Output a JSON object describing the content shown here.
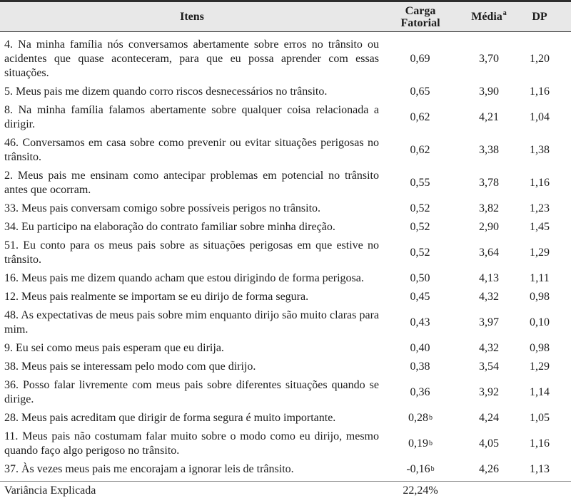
{
  "table": {
    "header": {
      "itens": "Itens",
      "carga_fatorial": "Carga Fatorial",
      "media": "Média",
      "media_sup": "a",
      "dp": "DP"
    },
    "rows": [
      {
        "item": "4. Na minha família nós conversamos abertamente sobre erros no trânsito ou acidentes que quase aconteceram, para que eu possa aprender com essas situações.",
        "carga": "0,69",
        "carga_sup": "",
        "media": "3,70",
        "dp": "1,20"
      },
      {
        "item": "5. Meus pais me dizem quando corro riscos desnecessários no trânsito.",
        "carga": "0,65",
        "carga_sup": "",
        "media": "3,90",
        "dp": "1,16"
      },
      {
        "item": "8. Na minha família falamos abertamente sobre qualquer coisa relacionada a dirigir.",
        "carga": "0,62",
        "carga_sup": "",
        "media": "4,21",
        "dp": "1,04"
      },
      {
        "item": "46. Conversamos em casa sobre como prevenir ou evitar situações perigosas no trânsito.",
        "carga": "0,62",
        "carga_sup": "",
        "media": "3,38",
        "dp": "1,38"
      },
      {
        "item": "2. Meus pais me ensinam como antecipar problemas em potencial no trânsito antes que ocorram.",
        "carga": "0,55",
        "carga_sup": "",
        "media": "3,78",
        "dp": "1,16"
      },
      {
        "item": "33. Meus pais conversam comigo sobre possíveis perigos no trânsito.",
        "carga": "0,52",
        "carga_sup": "",
        "media": "3,82",
        "dp": "1,23"
      },
      {
        "item": "34. Eu participo na elaboração do contrato familiar sobre minha direção.",
        "carga": "0,52",
        "carga_sup": "",
        "media": "2,90",
        "dp": "1,45"
      },
      {
        "item": "51. Eu conto para os meus pais sobre as situações perigosas em que estive no trânsito.",
        "carga": "0,52",
        "carga_sup": "",
        "media": "3,64",
        "dp": "1,29"
      },
      {
        "item": "16. Meus pais me dizem quando acham que estou dirigindo de forma perigosa.",
        "carga": "0,50",
        "carga_sup": "",
        "media": "4,13",
        "dp": "1,11"
      },
      {
        "item": "12. Meus pais realmente se importam se eu dirijo de forma segura.",
        "carga": "0,45",
        "carga_sup": "",
        "media": "4,32",
        "dp": "0,98"
      },
      {
        "item": "48. As expectativas de meus pais sobre mim enquanto dirijo são muito claras para mim.",
        "carga": "0,43",
        "carga_sup": "",
        "media": "3,97",
        "dp": "0,10"
      },
      {
        "item": "9. Eu sei como meus pais esperam que eu dirija.",
        "carga": "0,40",
        "carga_sup": "",
        "media": "4,32",
        "dp": "0,98"
      },
      {
        "item": "38. Meus pais se interessam pelo modo com que dirijo.",
        "carga": "0,38",
        "carga_sup": "",
        "media": "3,54",
        "dp": "1,29"
      },
      {
        "item": "36. Posso falar livremente com meus pais sobre diferentes situações quando se dirige.",
        "carga": "0,36",
        "carga_sup": "",
        "media": "3,92",
        "dp": "1,14"
      },
      {
        "item": "28. Meus pais acreditam que dirigir de forma segura é muito importante.",
        "carga": "0,28",
        "carga_sup": "b",
        "media": "4,24",
        "dp": "1,05"
      },
      {
        "item": "11. Meus pais não costumam falar muito sobre o modo como eu dirijo, mesmo quando faço algo perigoso no trânsito.",
        "carga": "0,19",
        "carga_sup": "b",
        "media": "4,05",
        "dp": "1,16"
      },
      {
        "item": "37. Às vezes meus pais me encorajam a ignorar leis de trânsito.",
        "carga": "-0,16",
        "carga_sup": "b",
        "media": "4,26",
        "dp": "1,13"
      }
    ],
    "footer": {
      "label": "Variância Explicada",
      "value": "22,24%"
    }
  }
}
